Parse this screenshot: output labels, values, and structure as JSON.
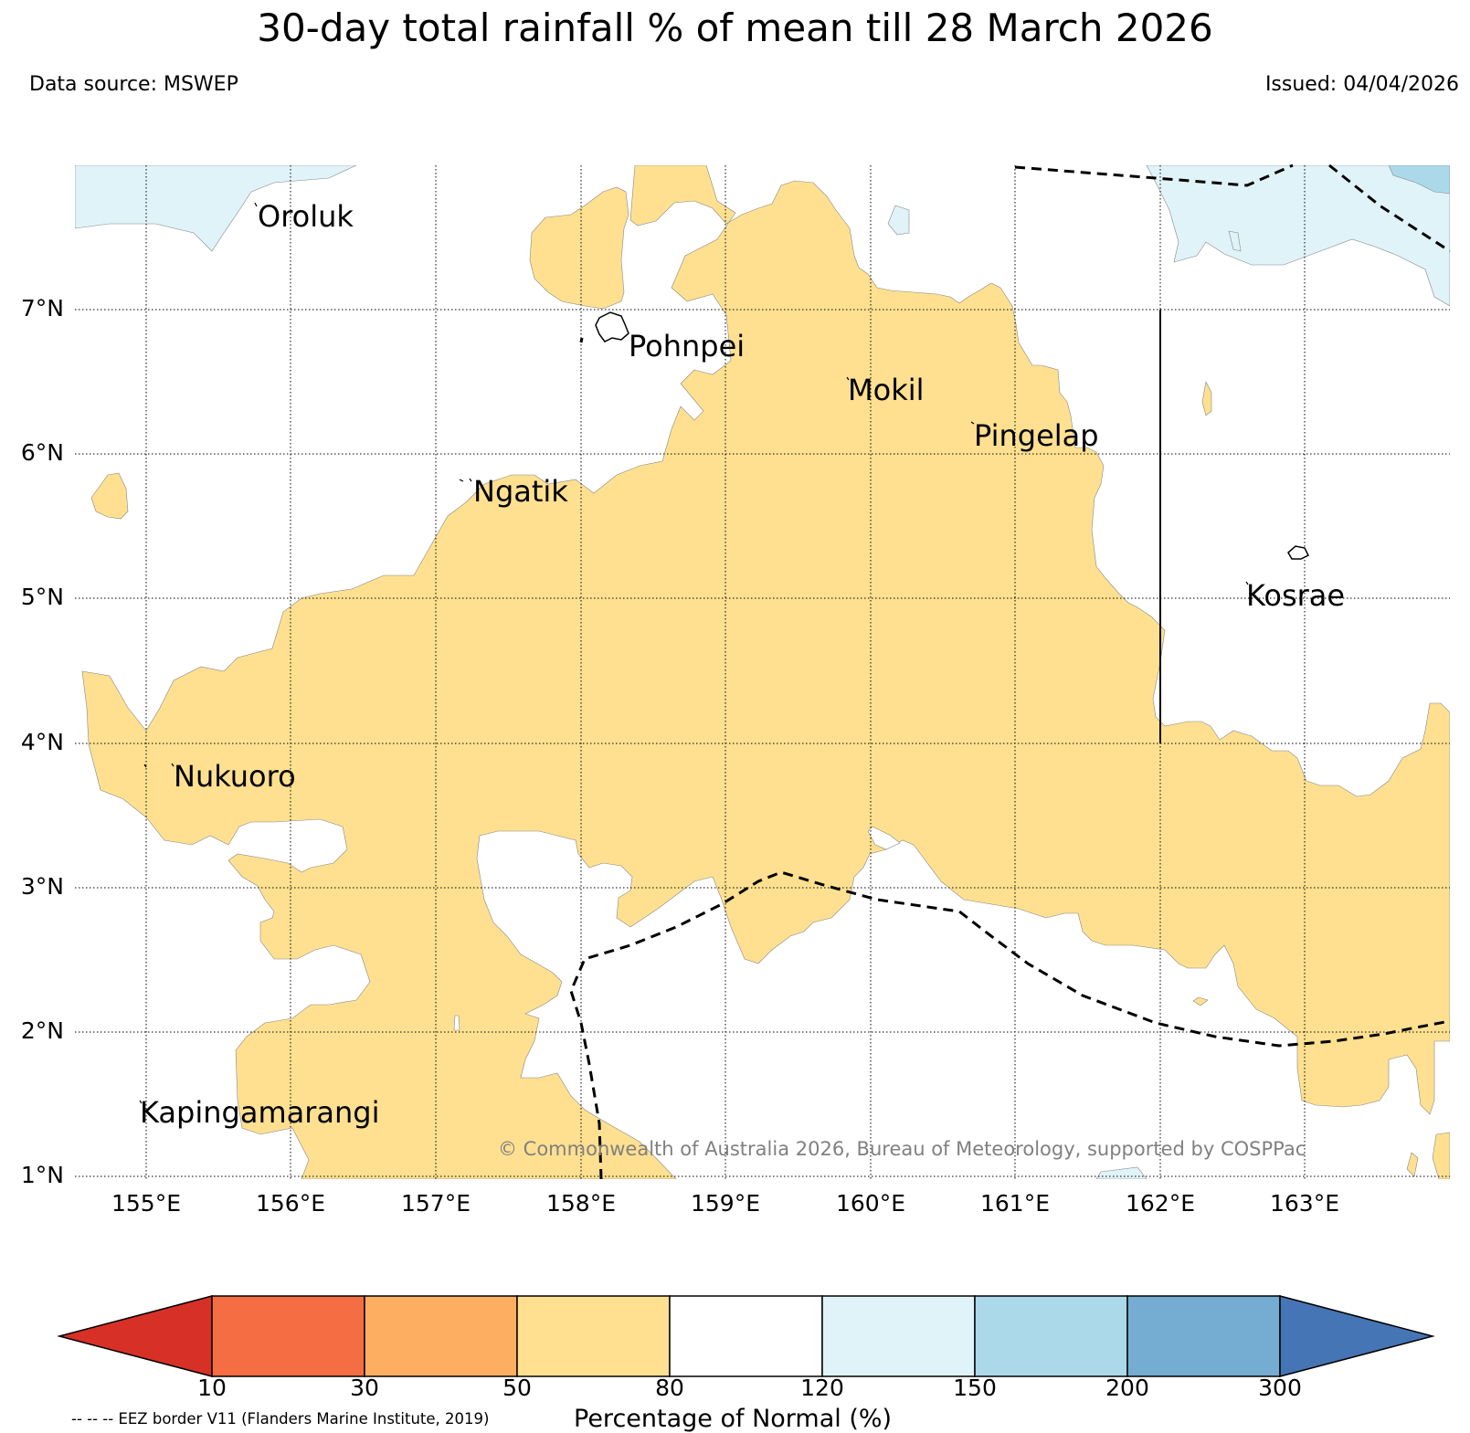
{
  "title": "30-day total rainfall % of mean till 28 March 2026",
  "data_source": "Data source: MSWEP",
  "issued": "Issued: 04/04/2026",
  "copyright": "© Commonwealth of Australia 2026, Bureau of Meteorology, supported by COSPPac",
  "map": {
    "lat_ticks": [
      "7°N",
      "6°N",
      "5°N",
      "4°N",
      "3°N",
      "2°N",
      "1°N"
    ],
    "lon_ticks": [
      "155°E",
      "156°E",
      "157°E",
      "158°E",
      "159°E",
      "160°E",
      "161°E",
      "162°E",
      "163°E"
    ],
    "places": {
      "oroluk": "Oroluk",
      "pohnpei": "Pohnpei",
      "mokil": "Mokil",
      "pingelap": "Pingelap",
      "ngatik": "Ngatik",
      "kosrae": "Kosrae",
      "nukuoro": "Nukuoro",
      "kapingamarangi": "Kapingamarangi"
    }
  },
  "legend": {
    "ticks": [
      "10",
      "30",
      "50",
      "80",
      "120",
      "150",
      "200",
      "300"
    ],
    "label": "Percentage of Normal (%)",
    "eez_note": "-- -- -- EEZ border V11 (Flanders Marine Institute, 2019)",
    "colors": [
      "#d73027",
      "#f46d43",
      "#fdae61",
      "#fee090",
      "#ffffff",
      "#e0f3f8",
      "#abd9e9",
      "#74add1",
      "#4575b4"
    ]
  },
  "colors": {
    "below_normal_50_80": "#fee090",
    "normal_80_120": "#ffffff",
    "above_normal_120_150": "#e0f3f8",
    "above_normal_150_200": "#abd9e9"
  }
}
